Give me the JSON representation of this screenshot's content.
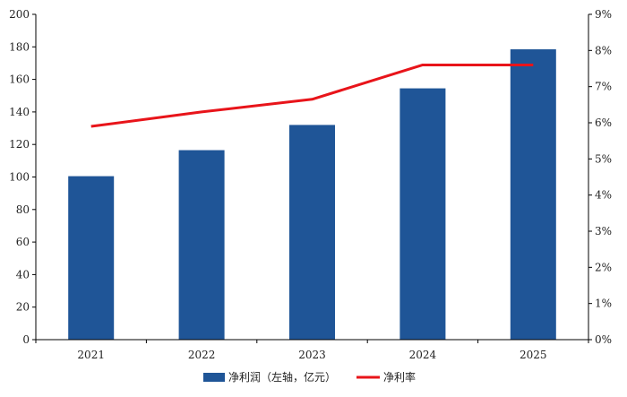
{
  "chart_data": {
    "type": "bar",
    "title": "",
    "xlabel": "",
    "ylabel": "",
    "categories": [
      "2021",
      "2022",
      "2023",
      "2024",
      "2025"
    ],
    "series": [
      {
        "name": "净利润（左轴，亿元）",
        "type": "bar",
        "axis": "left",
        "values": [
          100.5,
          116.5,
          132.0,
          154.5,
          178.5
        ],
        "color": "#1f5597"
      },
      {
        "name": "净利率",
        "type": "line",
        "axis": "right",
        "values": [
          5.9,
          6.3,
          6.65,
          7.6,
          7.6
        ],
        "unit": "%",
        "color": "#e8141a"
      }
    ],
    "ylim_left": [
      0,
      200
    ],
    "yticks_left": [
      "0",
      "20",
      "40",
      "60",
      "80",
      "100",
      "120",
      "140",
      "160",
      "180",
      "200"
    ],
    "ylim_right": [
      0,
      9
    ],
    "yticks_right": [
      "0%",
      "1%",
      "2%",
      "3%",
      "4%",
      "5%",
      "6%",
      "7%",
      "8%",
      "9%"
    ],
    "grid": false,
    "legend_position": "bottom-center"
  }
}
